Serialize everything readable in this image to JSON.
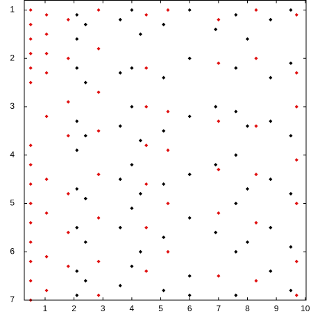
{
  "chart_data": {
    "type": "scatter",
    "xlim": [
      0.28,
      10.03
    ],
    "ylim": [
      0.8,
      7
    ],
    "y_inverted": true,
    "xticks": [
      1,
      2,
      3,
      4,
      5,
      6,
      7,
      8,
      9,
      10
    ],
    "yticks": [
      1,
      2,
      3,
      4,
      5,
      6,
      7
    ],
    "series": [
      {
        "color": "#000000",
        "x": [
          2.1,
          2.1,
          2.1,
          2.1,
          2.1,
          2.1,
          2.1,
          2.1,
          2.1,
          2.4,
          2.4,
          2.4,
          2.4,
          2.4,
          2.4,
          3.6,
          3.6,
          3.6,
          3.6,
          3.6,
          3.6,
          4.0,
          4.0,
          4.0,
          4.0,
          4.0,
          4.0,
          4.3,
          4.3,
          4.3,
          4.3,
          5.1,
          5.1,
          5.1,
          5.1,
          5.1,
          5.1,
          6.0,
          6.0,
          6.0,
          6.0,
          6.0,
          6.0,
          6.0,
          6.9,
          6.9,
          6.9,
          6.9,
          7.6,
          7.6,
          7.6,
          7.6,
          7.6,
          7.6,
          7.6,
          8.0,
          8.0,
          8.0,
          8.0,
          8.8,
          8.8,
          8.8,
          8.8,
          8.8,
          8.8,
          9.5,
          9.5,
          9.5,
          9.5,
          9.5,
          9.5
        ],
        "values": [
          1.1,
          1.6,
          2.2,
          3.3,
          3.9,
          4.7,
          5.5,
          6.4,
          6.9,
          1.3,
          2.5,
          3.6,
          4.9,
          5.8,
          6.6,
          1.2,
          2.3,
          3.4,
          4.5,
          5.5,
          6.7,
          1.0,
          2.2,
          3.0,
          4.2,
          5.1,
          6.3,
          1.5,
          3.7,
          4.8,
          6.0,
          1.3,
          2.4,
          3.5,
          4.6,
          5.7,
          6.8,
          1.0,
          2.0,
          3.2,
          4.4,
          5.3,
          6.5,
          6.9,
          1.4,
          3.0,
          4.2,
          5.6,
          1.1,
          2.2,
          3.1,
          4.0,
          5.0,
          6.0,
          6.9,
          1.6,
          3.4,
          4.7,
          5.8,
          1.2,
          2.4,
          3.3,
          4.5,
          5.5,
          6.4,
          1.0,
          2.1,
          3.6,
          4.8,
          5.9,
          6.8
        ]
      },
      {
        "color": "#e01010",
        "x": [
          0.5,
          0.5,
          0.5,
          0.5,
          0.5,
          0.5,
          0.5,
          0.5,
          0.5,
          0.5,
          0.5,
          0.5,
          0.5,
          0.5,
          0.5,
          1.05,
          1.05,
          1.05,
          1.05,
          1.05,
          1.05,
          1.05,
          1.05,
          1.05,
          1.8,
          1.8,
          1.8,
          1.8,
          1.8,
          1.8,
          1.8,
          2.85,
          2.85,
          2.85,
          2.85,
          2.85,
          2.85,
          2.85,
          2.85,
          4.5,
          4.5,
          4.5,
          4.5,
          4.5,
          4.5,
          4.5,
          5.25,
          5.25,
          5.25,
          5.25,
          5.25,
          7.0,
          7.0,
          7.0,
          7.0,
          7.0,
          7.0,
          8.3,
          8.3,
          8.3,
          8.3,
          8.3,
          8.3,
          9.7,
          9.7,
          9.7,
          9.7,
          9.7,
          9.7,
          9.7
        ],
        "values": [
          1.0,
          1.3,
          1.6,
          1.9,
          2.2,
          2.5,
          3.8,
          4.2,
          4.6,
          5.0,
          5.4,
          5.8,
          6.2,
          6.6,
          7.0,
          1.1,
          1.5,
          1.9,
          2.3,
          3.2,
          4.5,
          5.2,
          6.1,
          6.8,
          1.2,
          2.0,
          2.9,
          3.6,
          4.8,
          5.6,
          6.3,
          1.0,
          1.8,
          2.7,
          3.5,
          4.4,
          5.3,
          6.2,
          6.9,
          1.1,
          2.2,
          3.0,
          3.8,
          4.6,
          5.5,
          6.4,
          1.0,
          3.1,
          3.9,
          5.0,
          6.0,
          1.2,
          2.1,
          3.3,
          4.3,
          5.2,
          6.5,
          1.0,
          2.0,
          3.4,
          4.4,
          5.4,
          6.6,
          1.1,
          2.3,
          3.0,
          4.1,
          5.0,
          6.2,
          6.9
        ]
      }
    ]
  }
}
